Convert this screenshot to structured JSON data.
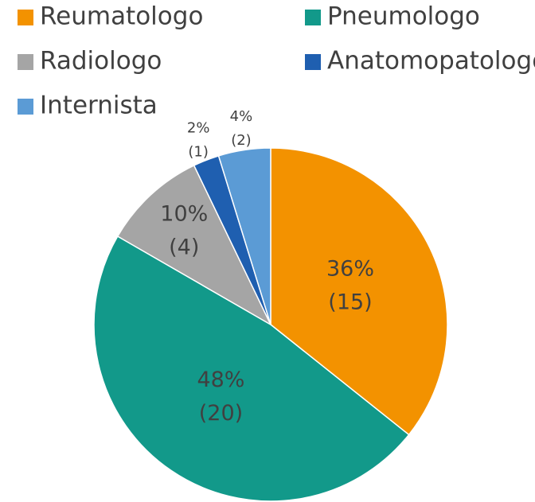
{
  "chart_data": {
    "type": "pie",
    "categories": [
      "Reumatologo",
      "Pneumologo",
      "Radiologo",
      "Anatomopatologo",
      "Internista"
    ],
    "values": [
      36,
      48,
      10,
      2,
      4
    ],
    "value_labels": [
      "36%",
      "48%",
      "10%",
      "2%",
      "4%"
    ],
    "counts": [
      15,
      20,
      4,
      1,
      2
    ],
    "count_labels": [
      "(15)",
      "(20)",
      "(4)",
      "(1)",
      "(2)"
    ],
    "colors": [
      "#f39200",
      "#12998a",
      "#a5a5a5",
      "#1f5fb0",
      "#5b9bd5"
    ],
    "legend": "top"
  }
}
